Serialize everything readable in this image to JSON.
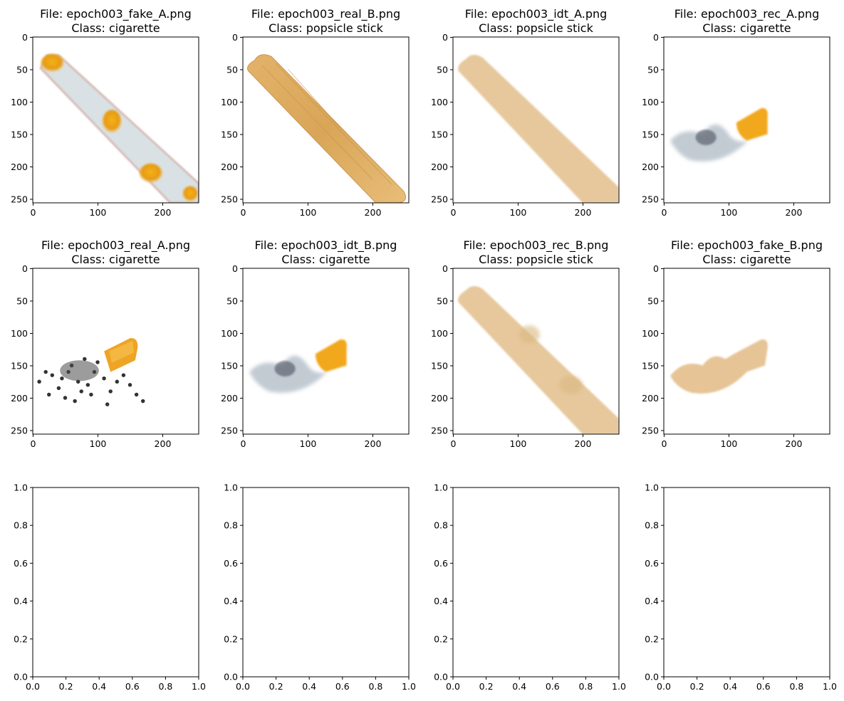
{
  "figure": {
    "panels": [
      {
        "file": "File: epoch003_fake_A.png",
        "class": "Class: cigarette",
        "image": "fake_A",
        "xticks": [
          "0",
          "100",
          "200"
        ],
        "yticks": [
          "0",
          "50",
          "100",
          "150",
          "200",
          "250"
        ]
      },
      {
        "file": "File: epoch003_real_B.png",
        "class": "Class: popsicle stick",
        "image": "real_B",
        "xticks": [
          "0",
          "100",
          "200"
        ],
        "yticks": [
          "0",
          "50",
          "100",
          "150",
          "200",
          "250"
        ]
      },
      {
        "file": "File: epoch003_idt_A.png",
        "class": "Class: popsicle stick",
        "image": "idt_A",
        "xticks": [
          "0",
          "100",
          "200"
        ],
        "yticks": [
          "0",
          "50",
          "100",
          "150",
          "200",
          "250"
        ]
      },
      {
        "file": "File: epoch003_rec_A.png",
        "class": "Class: cigarette",
        "image": "rec_A",
        "xticks": [
          "0",
          "100",
          "200"
        ],
        "yticks": [
          "0",
          "50",
          "100",
          "150",
          "200",
          "250"
        ]
      },
      {
        "file": "File: epoch003_real_A.png",
        "class": "Class: cigarette",
        "image": "real_A",
        "xticks": [
          "0",
          "100",
          "200"
        ],
        "yticks": [
          "0",
          "50",
          "100",
          "150",
          "200",
          "250"
        ]
      },
      {
        "file": "File: epoch003_idt_B.png",
        "class": "Class: cigarette",
        "image": "idt_B",
        "xticks": [
          "0",
          "100",
          "200"
        ],
        "yticks": [
          "0",
          "50",
          "100",
          "150",
          "200",
          "250"
        ]
      },
      {
        "file": "File: epoch003_rec_B.png",
        "class": "Class: popsicle stick",
        "image": "rec_B",
        "xticks": [
          "0",
          "100",
          "200"
        ],
        "yticks": [
          "0",
          "50",
          "100",
          "150",
          "200",
          "250"
        ]
      },
      {
        "file": "File: epoch003_fake_B.png",
        "class": "Class: cigarette",
        "image": "fake_B",
        "xticks": [
          "0",
          "100",
          "200"
        ],
        "yticks": [
          "0",
          "50",
          "100",
          "150",
          "200",
          "250"
        ]
      }
    ],
    "empty_axes": {
      "xticks": [
        "0.0",
        "0.2",
        "0.4",
        "0.6",
        "0.8",
        "1.0"
      ],
      "yticks": [
        "0.0",
        "0.2",
        "0.4",
        "0.6",
        "0.8",
        "1.0"
      ],
      "count": 4
    }
  }
}
